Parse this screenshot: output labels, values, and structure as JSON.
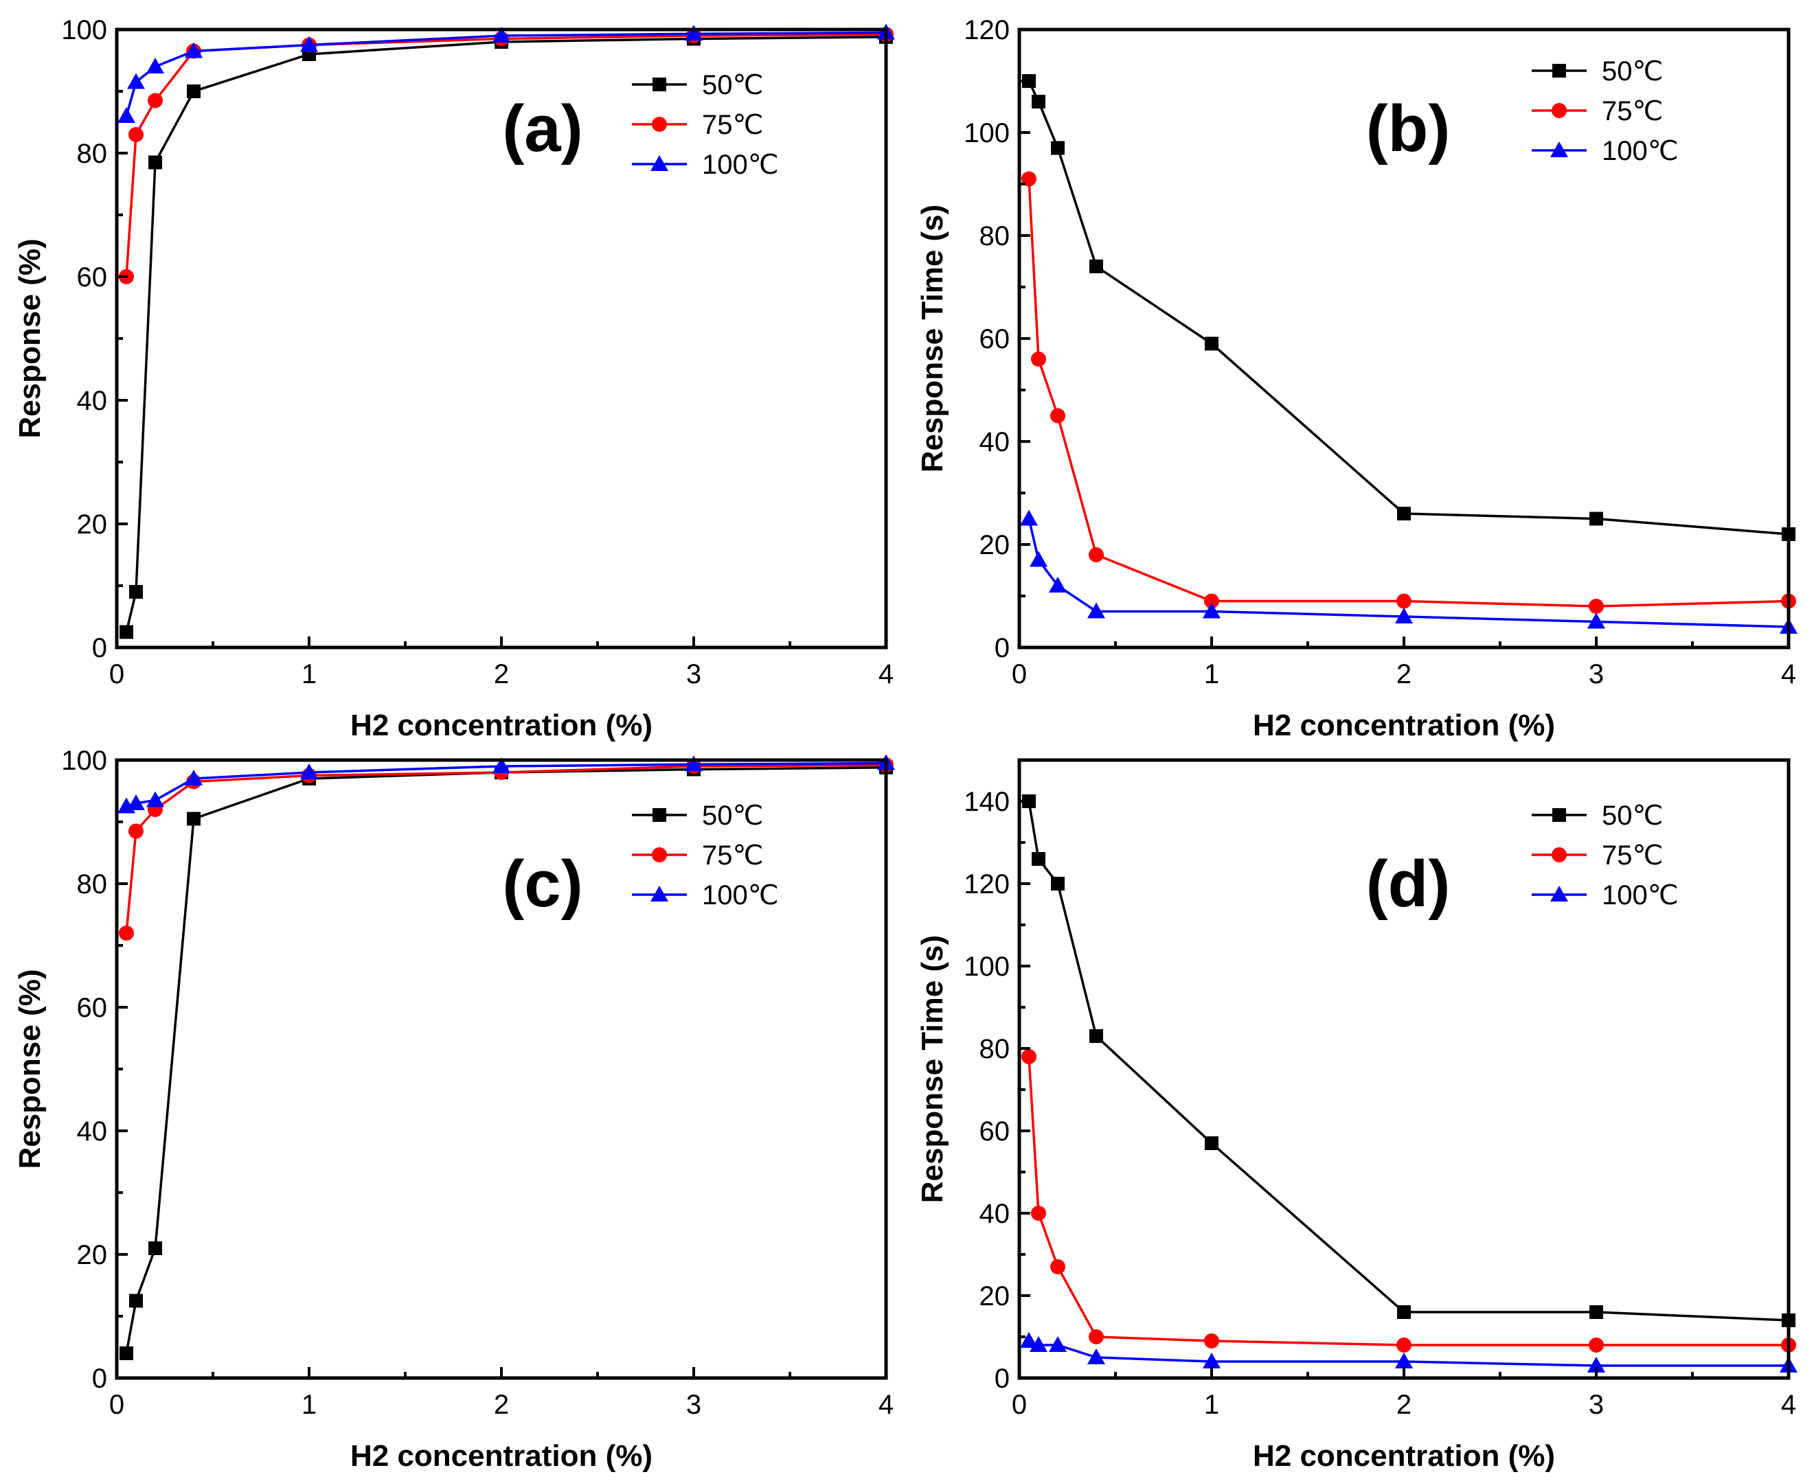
{
  "colors": {
    "s50": "#000000",
    "s75": "#ff0000",
    "s100": "#0000ff"
  },
  "chart_data": [
    {
      "type": "line",
      "panel_label": "(a)",
      "xlabel": "H2 concentration (%)",
      "ylabel": "Response (%)",
      "xlim": [
        0,
        4
      ],
      "ylim": [
        0,
        100
      ],
      "xticks": [
        "0",
        "1",
        "2",
        "3",
        "4"
      ],
      "yticks": [
        "0",
        "20",
        "40",
        "60",
        "80",
        "100"
      ],
      "legend_position": "top-right",
      "series": [
        {
          "name": "50℃",
          "marker": "square",
          "x": [
            0.05,
            0.1,
            0.2,
            0.4,
            1,
            2,
            3,
            4
          ],
          "values": [
            2.5,
            9,
            78.5,
            90,
            96,
            98,
            98.5,
            98.8
          ]
        },
        {
          "name": "75℃",
          "marker": "circle",
          "x": [
            0.05,
            0.1,
            0.2,
            0.4,
            1,
            2,
            3,
            4
          ],
          "values": [
            60,
            83,
            88.5,
            96.5,
            97.5,
            98.5,
            99,
            99.2
          ]
        },
        {
          "name": "100℃",
          "marker": "triangle",
          "x": [
            0.05,
            0.1,
            0.2,
            0.4,
            1,
            2,
            3,
            4
          ],
          "values": [
            86,
            91.5,
            94,
            96.5,
            97.5,
            99,
            99.3,
            99.5
          ]
        }
      ]
    },
    {
      "type": "line",
      "panel_label": "(b)",
      "xlabel": "H2 concentration (%)",
      "ylabel": "Response Time (s)",
      "xlim": [
        0,
        4
      ],
      "ylim": [
        0,
        120
      ],
      "xticks": [
        "0",
        "1",
        "2",
        "3",
        "4"
      ],
      "yticks": [
        "0",
        "20",
        "40",
        "60",
        "80",
        "100",
        "120"
      ],
      "legend_position": "top-right",
      "series": [
        {
          "name": "50℃",
          "marker": "square",
          "x": [
            0.05,
            0.1,
            0.2,
            0.4,
            1,
            2,
            3,
            4
          ],
          "values": [
            110,
            106,
            97,
            74,
            59,
            26,
            25,
            22
          ]
        },
        {
          "name": "75℃",
          "marker": "circle",
          "x": [
            0.05,
            0.1,
            0.2,
            0.4,
            1,
            2,
            3,
            4
          ],
          "values": [
            91,
            56,
            45,
            18,
            9,
            9,
            8,
            9
          ]
        },
        {
          "name": "100℃",
          "marker": "triangle",
          "x": [
            0.05,
            0.1,
            0.2,
            0.4,
            1,
            2,
            3,
            4
          ],
          "values": [
            25,
            17,
            12,
            7,
            7,
            6,
            5,
            4
          ]
        }
      ]
    },
    {
      "type": "line",
      "panel_label": "(c)",
      "xlabel": "H2 concentration (%)",
      "ylabel": "Response (%)",
      "xlim": [
        0,
        4
      ],
      "ylim": [
        0,
        100
      ],
      "xticks": [
        "0",
        "1",
        "2",
        "3",
        "4"
      ],
      "yticks": [
        "0",
        "20",
        "40",
        "60",
        "80",
        "100"
      ],
      "legend_position": "right",
      "series": [
        {
          "name": "50℃",
          "marker": "square",
          "x": [
            0.05,
            0.1,
            0.2,
            0.4,
            1,
            2,
            3,
            4
          ],
          "values": [
            4,
            12.5,
            21,
            90.5,
            97,
            98,
            98.5,
            98.8
          ]
        },
        {
          "name": "75℃",
          "marker": "circle",
          "x": [
            0.05,
            0.1,
            0.2,
            0.4,
            1,
            2,
            3,
            4
          ],
          "values": [
            72,
            88.5,
            92,
            96.5,
            97.5,
            98,
            99,
            99.2
          ]
        },
        {
          "name": "100℃",
          "marker": "triangle",
          "x": [
            0.05,
            0.1,
            0.2,
            0.4,
            1,
            2,
            3,
            4
          ],
          "values": [
            92.5,
            93,
            93.5,
            97,
            98,
            99,
            99.3,
            99.5
          ]
        }
      ]
    },
    {
      "type": "line",
      "panel_label": "(d)",
      "xlabel": "H2 concentration (%)",
      "ylabel": "Response Time (s)",
      "xlim": [
        0,
        4
      ],
      "ylim": [
        0,
        150
      ],
      "xticks": [
        "0",
        "1",
        "2",
        "3",
        "4"
      ],
      "yticks": [
        "0",
        "20",
        "40",
        "60",
        "80",
        "100",
        "120",
        "140"
      ],
      "legend_position": "top-right",
      "series": [
        {
          "name": "50℃",
          "marker": "square",
          "x": [
            0.05,
            0.1,
            0.2,
            0.4,
            1,
            2,
            3,
            4
          ],
          "values": [
            140,
            126,
            120,
            83,
            57,
            16,
            16,
            14
          ]
        },
        {
          "name": "75℃",
          "marker": "circle",
          "x": [
            0.05,
            0.1,
            0.2,
            0.4,
            1,
            2,
            3,
            4
          ],
          "values": [
            78,
            40,
            27,
            10,
            9,
            8,
            8,
            8
          ]
        },
        {
          "name": "100℃",
          "marker": "triangle",
          "x": [
            0.05,
            0.1,
            0.2,
            0.4,
            1,
            2,
            3,
            4
          ],
          "values": [
            9,
            8,
            8,
            5,
            4,
            4,
            3,
            3
          ]
        }
      ]
    }
  ]
}
